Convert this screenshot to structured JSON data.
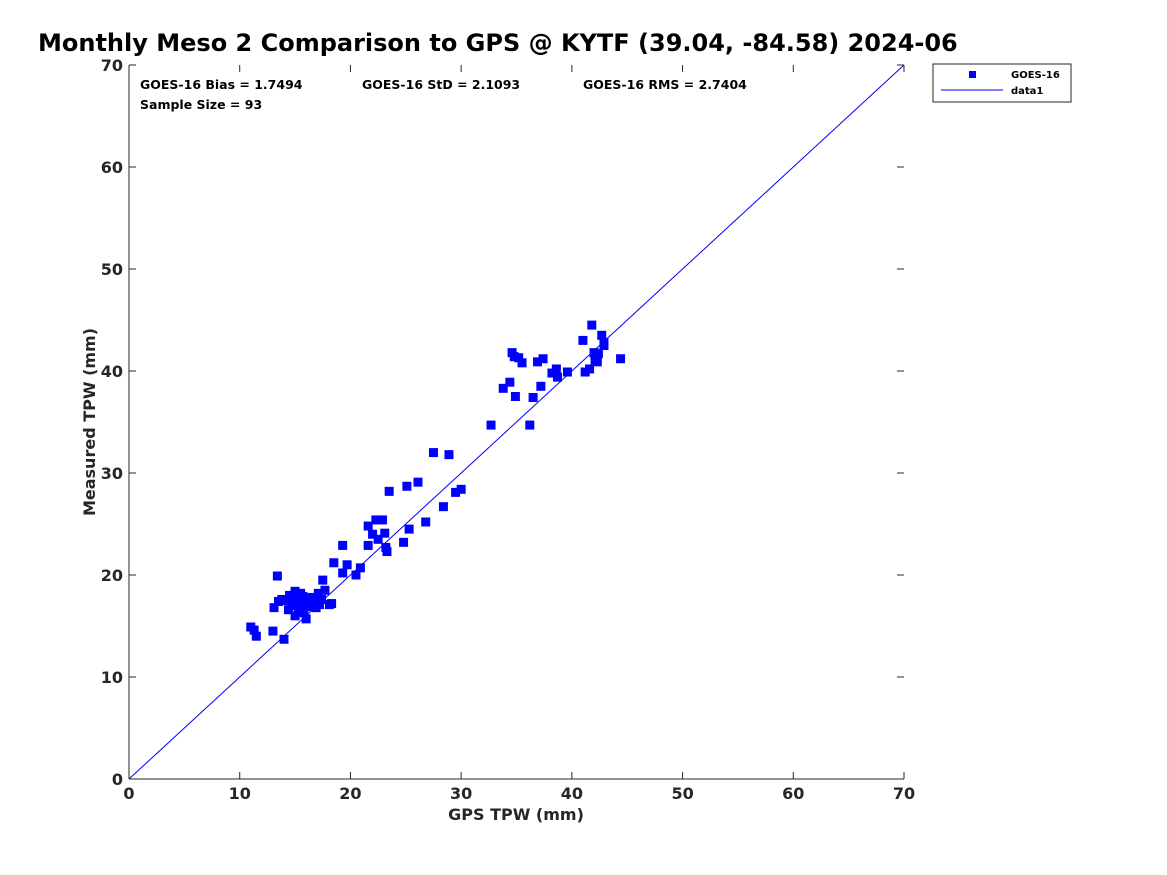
{
  "chart_data": {
    "type": "scatter",
    "title": "Monthly Meso 2 Comparison to GPS @ KYTF (39.04, -84.58) 2024-06",
    "xlabel": "GPS TPW (mm)",
    "ylabel": "Measured TPW (mm)",
    "xlim": [
      0,
      70
    ],
    "ylim": [
      0,
      70
    ],
    "xticks": [
      "0",
      "10",
      "20",
      "30",
      "40",
      "50",
      "60",
      "70"
    ],
    "yticks": [
      "0",
      "10",
      "20",
      "30",
      "40",
      "50",
      "60",
      "70"
    ],
    "grid": false,
    "legend_position": "top-right-outside",
    "stats": {
      "bias": "GOES-16 Bias = 1.7494",
      "std": "GOES-16 StD = 2.1093",
      "rms": "GOES-16 RMS = 2.7404",
      "sample": "Sample Size = 93"
    },
    "series": [
      {
        "name": "GOES-16",
        "kind": "scatter",
        "marker": "square",
        "color": "#0000ff",
        "points": [
          [
            11.0,
            14.9
          ],
          [
            11.3,
            14.6
          ],
          [
            11.5,
            14.0
          ],
          [
            13.0,
            14.5
          ],
          [
            14.0,
            13.7
          ],
          [
            13.1,
            16.8
          ],
          [
            13.5,
            17.4
          ],
          [
            13.4,
            19.9
          ],
          [
            13.8,
            17.6
          ],
          [
            14.2,
            17.5
          ],
          [
            14.4,
            16.6
          ],
          [
            14.5,
            18.0
          ],
          [
            14.7,
            17.2
          ],
          [
            14.9,
            17.0
          ],
          [
            15.0,
            16.0
          ],
          [
            15.0,
            18.4
          ],
          [
            15.2,
            17.7
          ],
          [
            15.3,
            16.7
          ],
          [
            15.5,
            18.2
          ],
          [
            15.6,
            17.0
          ],
          [
            15.7,
            17.9
          ],
          [
            15.8,
            16.3
          ],
          [
            16.0,
            15.7
          ],
          [
            16.0,
            17.5
          ],
          [
            16.2,
            16.9
          ],
          [
            16.4,
            17.5
          ],
          [
            16.5,
            17.8
          ],
          [
            16.7,
            17.1
          ],
          [
            16.9,
            16.8
          ],
          [
            17.0,
            17.8
          ],
          [
            17.1,
            18.2
          ],
          [
            17.2,
            17.1
          ],
          [
            17.4,
            17.6
          ],
          [
            17.5,
            19.5
          ],
          [
            17.7,
            18.5
          ],
          [
            18.1,
            17.1
          ],
          [
            18.3,
            17.2
          ],
          [
            18.5,
            21.2
          ],
          [
            19.3,
            22.9
          ],
          [
            19.3,
            20.2
          ],
          [
            19.7,
            21.0
          ],
          [
            20.5,
            20.0
          ],
          [
            20.9,
            20.7
          ],
          [
            21.6,
            22.9
          ],
          [
            21.6,
            24.8
          ],
          [
            22.0,
            24.0
          ],
          [
            22.3,
            25.4
          ],
          [
            22.5,
            23.5
          ],
          [
            22.9,
            25.4
          ],
          [
            23.1,
            24.1
          ],
          [
            23.2,
            22.7
          ],
          [
            23.3,
            22.3
          ],
          [
            23.5,
            28.2
          ],
          [
            24.8,
            23.2
          ],
          [
            25.1,
            28.7
          ],
          [
            25.3,
            24.5
          ],
          [
            26.1,
            29.1
          ],
          [
            26.8,
            25.2
          ],
          [
            27.5,
            32.0
          ],
          [
            28.4,
            26.7
          ],
          [
            28.9,
            31.8
          ],
          [
            29.5,
            28.1
          ],
          [
            30.0,
            28.4
          ],
          [
            32.7,
            34.7
          ],
          [
            33.8,
            38.3
          ],
          [
            34.4,
            38.9
          ],
          [
            34.6,
            41.8
          ],
          [
            34.8,
            41.4
          ],
          [
            34.9,
            37.5
          ],
          [
            35.2,
            41.3
          ],
          [
            35.5,
            40.8
          ],
          [
            36.2,
            34.7
          ],
          [
            36.5,
            37.4
          ],
          [
            36.9,
            40.9
          ],
          [
            37.2,
            38.5
          ],
          [
            37.4,
            41.2
          ],
          [
            38.2,
            39.8
          ],
          [
            38.6,
            40.2
          ],
          [
            38.7,
            39.4
          ],
          [
            39.6,
            39.9
          ],
          [
            41.0,
            43.0
          ],
          [
            41.2,
            39.9
          ],
          [
            41.6,
            40.2
          ],
          [
            41.8,
            44.5
          ],
          [
            42.0,
            41.8
          ],
          [
            42.1,
            41.5
          ],
          [
            42.1,
            41.0
          ],
          [
            42.3,
            40.9
          ],
          [
            42.7,
            43.5
          ],
          [
            42.9,
            42.5
          ],
          [
            42.9,
            42.8
          ],
          [
            44.4,
            41.2
          ],
          [
            42.4,
            41.7
          ]
        ]
      },
      {
        "name": "data1",
        "kind": "line",
        "color": "#0000ff",
        "points": [
          [
            0,
            0
          ],
          [
            70,
            70
          ]
        ]
      }
    ]
  }
}
